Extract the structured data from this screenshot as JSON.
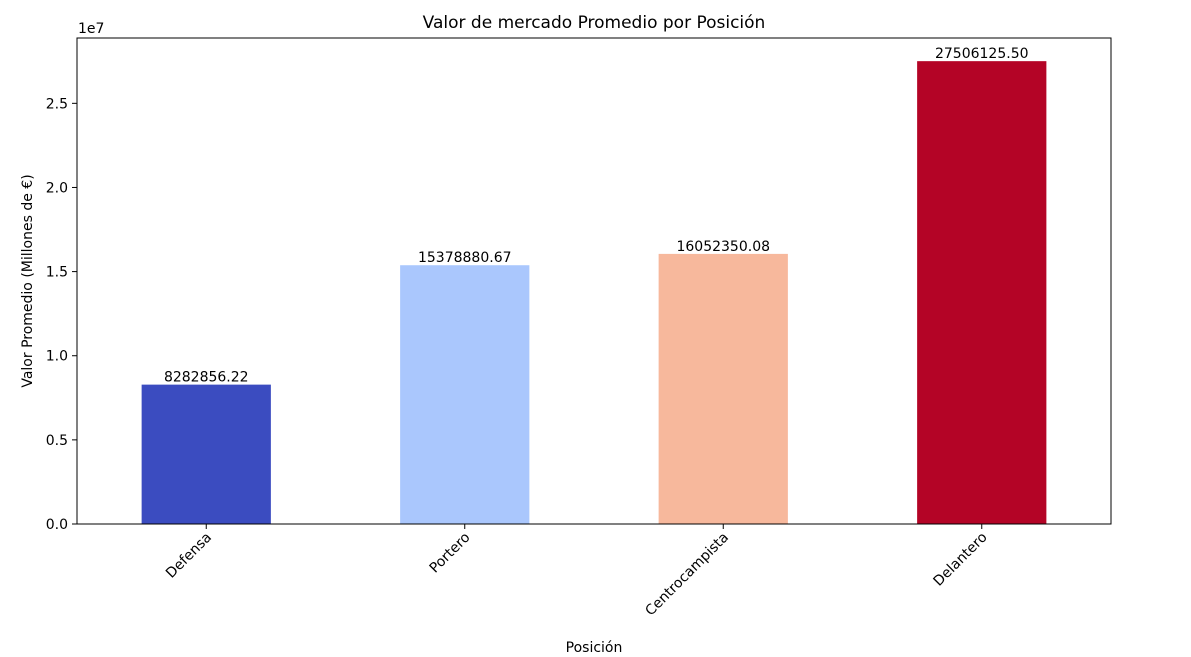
{
  "chart_data": {
    "type": "bar",
    "title": "Valor de mercado Promedio por Posición",
    "xlabel": "Posición",
    "ylabel": "Valor Promedio (Millones de €)",
    "y_offset_label": "1e7",
    "categories": [
      "Defensa",
      "Portero",
      "Centrocampista",
      "Delantero"
    ],
    "values": [
      8282856.22,
      15378880.67,
      16052350.08,
      27506125.5
    ],
    "value_labels": [
      "8282856.22",
      "15378880.67",
      "16052350.08",
      "27506125.50"
    ],
    "colors": [
      "#3b4cc0",
      "#aac7fd",
      "#f7b89c",
      "#b40426"
    ],
    "ylim": [
      0,
      28882431.78
    ],
    "yticks": [
      0,
      5000000,
      10000000,
      15000000,
      20000000,
      25000000
    ],
    "ytick_labels": [
      "0.0",
      "0.5",
      "1.0",
      "1.5",
      "2.0",
      "2.5"
    ],
    "xtick_rotation": -45,
    "grid": false,
    "legend": false
  }
}
